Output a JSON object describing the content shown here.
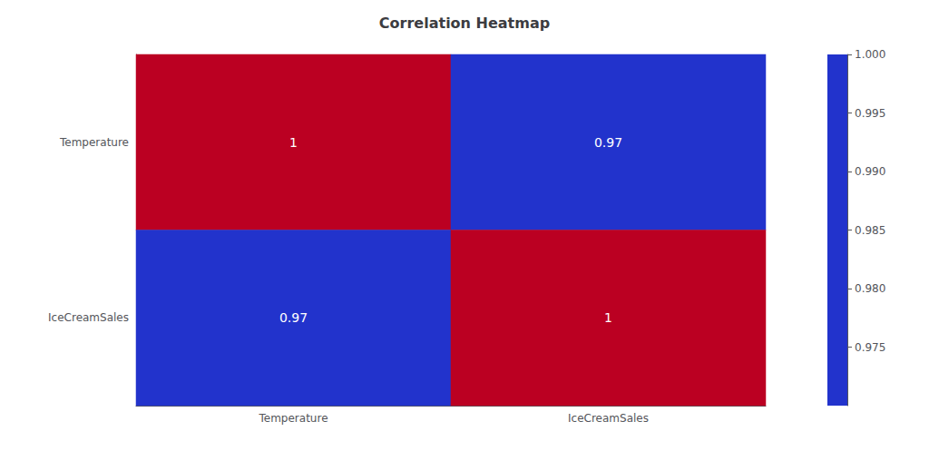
{
  "chart_data": {
    "type": "heatmap",
    "title": "Correlation Heatmap",
    "categories": [
      "Temperature",
      "IceCreamSales"
    ],
    "values": [
      [
        1.0,
        0.97
      ],
      [
        0.97,
        1.0
      ]
    ],
    "value_labels": [
      [
        "1",
        "0.97"
      ],
      [
        "0.97",
        "1"
      ]
    ],
    "data_labels": true,
    "colors": [
      "#2233cc",
      "#ffffff",
      "#bb0022"
    ],
    "color_range": [
      0.97,
      1.0
    ],
    "color_ticks": [
      0.975,
      {
        "value": 0.98,
        "label": "0.980"
      },
      0.985,
      {
        "value": 0.99,
        "label": "0.990"
      },
      0.995,
      {
        "value": 1.0,
        "label": "1.000"
      }
    ]
  }
}
